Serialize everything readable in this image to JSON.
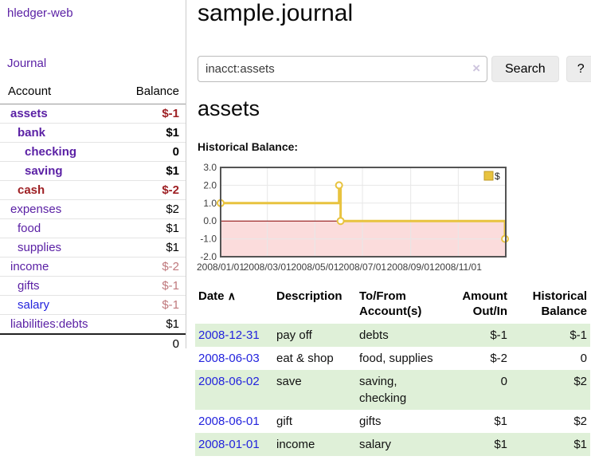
{
  "app": {
    "title": "hledger-web",
    "journal_link": "Journal"
  },
  "sidebar": {
    "headers": [
      "Account",
      "Balance"
    ],
    "rows": [
      {
        "name": "assets",
        "balance": "$-1",
        "depth": 0,
        "bold": true,
        "neg": "strong",
        "link": "purple"
      },
      {
        "name": "bank",
        "balance": "$1",
        "depth": 1,
        "bold": true,
        "neg": "",
        "link": "purple"
      },
      {
        "name": "checking",
        "balance": "0",
        "depth": 2,
        "bold": true,
        "neg": "",
        "link": "purple"
      },
      {
        "name": "saving",
        "balance": "$1",
        "depth": 2,
        "bold": true,
        "neg": "",
        "link": "purple"
      },
      {
        "name": "cash",
        "balance": "$-2",
        "depth": 1,
        "bold": true,
        "neg": "strong",
        "link": "red"
      },
      {
        "name": "expenses",
        "balance": "$2",
        "depth": 0,
        "bold": false,
        "neg": "",
        "link": "purple"
      },
      {
        "name": "food",
        "balance": "$1",
        "depth": 1,
        "bold": false,
        "neg": "",
        "link": "purple"
      },
      {
        "name": "supplies",
        "balance": "$1",
        "depth": 1,
        "bold": false,
        "neg": "",
        "link": "purple"
      },
      {
        "name": "income",
        "balance": "$-2",
        "depth": 0,
        "bold": false,
        "neg": "dim",
        "link": "purple"
      },
      {
        "name": "gifts",
        "balance": "$-1",
        "depth": 1,
        "bold": false,
        "neg": "dim",
        "link": "purple"
      },
      {
        "name": "salary",
        "balance": "$-1",
        "depth": 1,
        "bold": false,
        "neg": "dim",
        "link": "blue"
      },
      {
        "name": "liabilities:debts",
        "balance": "$1",
        "depth": 0,
        "bold": false,
        "neg": "",
        "link": "purple",
        "last": true
      }
    ],
    "total": "0"
  },
  "main": {
    "title": "sample.journal",
    "search": {
      "value": "inacct:assets",
      "clear_icon": "×",
      "button_label": "Search",
      "help_label": "?"
    },
    "account_heading": "assets",
    "chart_label": "Historical Balance:"
  },
  "chart_data": {
    "type": "line",
    "title": "Historical Balance",
    "step": true,
    "xlim": [
      0,
      366
    ],
    "ylim": [
      -2,
      3
    ],
    "grid": true,
    "negative_region_shaded": true,
    "legend": {
      "label": "$",
      "position": "top-right"
    },
    "y_ticks": [
      {
        "v": 3,
        "label": "3.0"
      },
      {
        "v": 2,
        "label": "2.0"
      },
      {
        "v": 1,
        "label": "1.0"
      },
      {
        "v": 0,
        "label": "0.0"
      },
      {
        "v": -1,
        "label": "-1.0"
      },
      {
        "v": -2,
        "label": "-2.0"
      }
    ],
    "x_ticks": [
      {
        "v": 0,
        "label": "2008/01/01"
      },
      {
        "v": 60,
        "label": "2008/03/01"
      },
      {
        "v": 121,
        "label": "2008/05/01"
      },
      {
        "v": 182,
        "label": "2008/07/01"
      },
      {
        "v": 244,
        "label": "2008/09/01"
      },
      {
        "v": 305,
        "label": "2008/11/01"
      }
    ],
    "series": [
      {
        "name": "$",
        "points": [
          {
            "date": "2008/01/01",
            "x": 0,
            "y": 1
          },
          {
            "date": "2008/06/01",
            "x": 152,
            "y": 2
          },
          {
            "date": "2008/06/03",
            "x": 154,
            "y": 0
          },
          {
            "date": "2008/12/31",
            "x": 365,
            "y": -1
          }
        ]
      }
    ]
  },
  "register": {
    "headers": {
      "date": "Date",
      "description": "Description",
      "accounts": "To/From Account(s)",
      "amount": "Amount Out/In",
      "balance": "Historical Balance"
    },
    "sort_icon": "∧",
    "rows": [
      {
        "date": "2008-12-31",
        "description": "pay off",
        "accounts": "debts",
        "amount": "$-1",
        "amount_negative": true,
        "balance": "$-1",
        "balance_negative": true,
        "shaded": true
      },
      {
        "date": "2008-06-03",
        "description": "eat & shop",
        "accounts": "food, supplies",
        "amount": "$-2",
        "amount_negative": true,
        "balance": "0",
        "balance_negative": false,
        "shaded": false
      },
      {
        "date": "2008-06-02",
        "description": "save",
        "accounts": "saving,\nchecking",
        "amount": "0",
        "amount_negative": false,
        "balance": "$2",
        "balance_negative": false,
        "shaded": true
      },
      {
        "date": "2008-06-01",
        "description": "gift",
        "accounts": "gifts",
        "amount": "$1",
        "amount_negative": false,
        "balance": "$2",
        "balance_negative": false,
        "shaded": false
      },
      {
        "date": "2008-01-01",
        "description": "income",
        "accounts": "salary",
        "amount": "$1",
        "amount_negative": false,
        "balance": "$1",
        "balance_negative": false,
        "shaded": true
      }
    ]
  },
  "colors": {
    "link_purple": "#5b21a5",
    "link_blue": "#2323dd",
    "negative_strong": "#9e2024",
    "negative_dim": "#bf787c",
    "row_green": "#dff0d8",
    "button_bg": "#ececec",
    "chart_line": "#e8c33f",
    "chart_legend_border": "#bf9b2a",
    "chart_marker_fill": "#ffffff",
    "chart_negative_bg": "#fbdcdc",
    "chart_zero_line": "#8b0000",
    "chart_frame": "#545454",
    "chart_grid": "#e7e7e7",
    "chart_text": "#3d3d3d"
  }
}
